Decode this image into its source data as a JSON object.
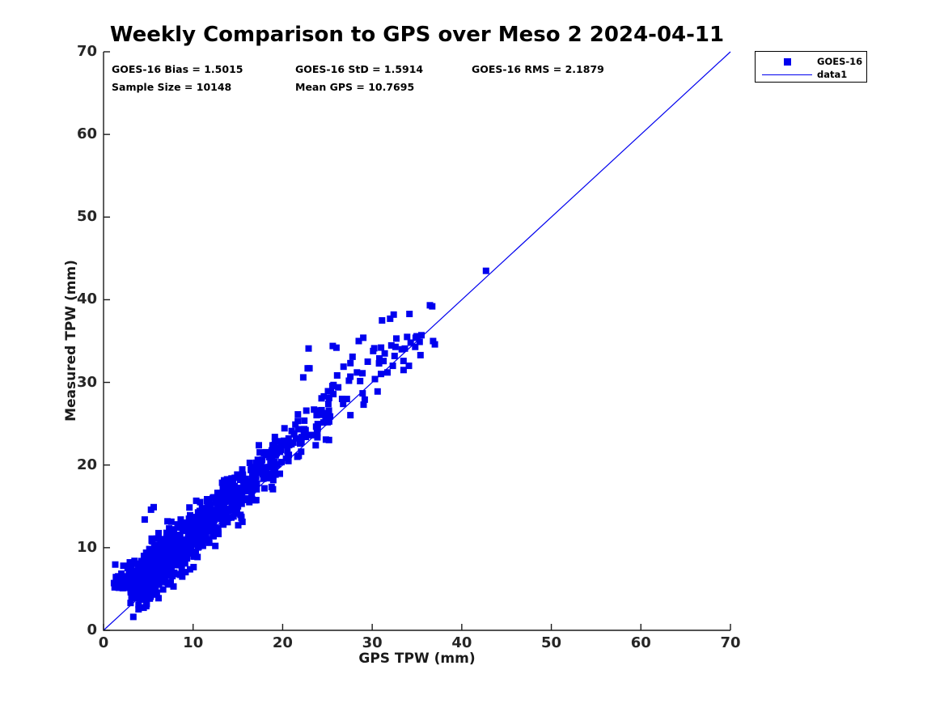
{
  "accent_color": "#0000ee",
  "axis_color": "#1a1a1a",
  "tick_label_color": "#262626",
  "chart_data": {
    "type": "scatter",
    "title": "Weekly Comparison to GPS over Meso 2 2024-04-11",
    "xlabel": "GPS TPW (mm)",
    "ylabel": "Measured TPW (mm)",
    "xlim": [
      0,
      70
    ],
    "ylim": [
      0,
      70
    ],
    "x_ticks": [
      0,
      10,
      20,
      30,
      40,
      50,
      60,
      70
    ],
    "y_ticks": [
      0,
      10,
      20,
      30,
      40,
      50,
      60,
      70
    ],
    "grid": false,
    "box": false,
    "annotations": {
      "row1": [
        "GOES-16 Bias = 1.5015",
        "GOES-16 StD = 1.5914",
        "GOES-16 RMS = 2.1879"
      ],
      "row2": [
        "Sample Size = 10148",
        "Mean GPS = 10.7695"
      ]
    },
    "stats": {
      "bias": 1.5015,
      "std": 1.5914,
      "rms": 2.1879,
      "sample_size": 10148,
      "mean_gps": 10.7695
    },
    "legend": {
      "position": "northeast-outside",
      "entries": [
        {
          "label": "GOES-16",
          "type": "marker",
          "color": "#0000ee"
        },
        {
          "label": "data1",
          "type": "line",
          "color": "#0000ee"
        }
      ]
    },
    "identity_line": {
      "name": "data1",
      "x": [
        0,
        70
      ],
      "y": [
        0,
        70
      ],
      "color": "#0000ee",
      "width": 1.2
    },
    "series": [
      {
        "name": "GOES-16",
        "marker": "square",
        "marker_size_px": 8,
        "color": "#0000ee",
        "cluster_model": {
          "n": 1100,
          "seed": 20240411,
          "x_offset": 0.8,
          "x_gamma_scale": 4.6,
          "x_max": 37,
          "bias": 1.5,
          "noise_std": 1.55,
          "low_x_extra_bias": 2.2,
          "low_x_scale": 2.2,
          "max_below_line": 2.6,
          "floor_x_below": 3.0,
          "floor_y": 5.1
        },
        "outlier_points": [
          [
            42.7,
            43.5
          ],
          [
            36.7,
            39.2
          ],
          [
            31.1,
            37.5
          ],
          [
            32.0,
            37.7
          ],
          [
            32.4,
            38.2
          ],
          [
            37.0,
            34.6
          ],
          [
            36.8,
            35.0
          ],
          [
            25.6,
            34.4
          ],
          [
            28.5,
            35.0
          ],
          [
            29.0,
            35.4
          ],
          [
            22.8,
            31.7
          ],
          [
            23.0,
            31.7
          ],
          [
            30.1,
            33.8
          ],
          [
            30.8,
            32.9
          ],
          [
            31.4,
            33.5
          ],
          [
            32.3,
            32.0
          ],
          [
            32.5,
            33.2
          ],
          [
            32.6,
            34.3
          ],
          [
            32.7,
            35.3
          ],
          [
            33.3,
            34.0
          ],
          [
            33.9,
            35.5
          ],
          [
            34.3,
            34.8
          ],
          [
            34.8,
            34.3
          ],
          [
            35.3,
            34.9
          ],
          [
            35.5,
            35.7
          ],
          [
            33.5,
            31.5
          ],
          [
            34.1,
            32.0
          ],
          [
            31.7,
            31.2
          ],
          [
            30.3,
            30.4
          ],
          [
            28.3,
            31.2
          ],
          [
            27.4,
            30.2
          ],
          [
            26.2,
            29.4
          ],
          [
            24.6,
            28.3
          ],
          [
            26.8,
            31.9
          ],
          [
            27.8,
            33.1
          ],
          [
            24.0,
            26.6
          ],
          [
            25.1,
            27.4
          ],
          [
            29.5,
            32.5
          ],
          [
            25.4,
            28.9
          ],
          [
            22.3,
            30.6
          ],
          [
            5.3,
            14.6
          ],
          [
            4.6,
            13.4
          ],
          [
            5.6,
            14.9
          ],
          [
            3.6,
            4.2
          ],
          [
            4.1,
            4.0
          ],
          [
            3.4,
            4.4
          ],
          [
            22.9,
            34.1
          ],
          [
            26.0,
            34.2
          ],
          [
            30.6,
            28.9
          ]
        ]
      }
    ]
  },
  "layout_text": {
    "legend_marker_icon": "blue-square-marker",
    "legend_line_icon": "blue-line-sample"
  }
}
